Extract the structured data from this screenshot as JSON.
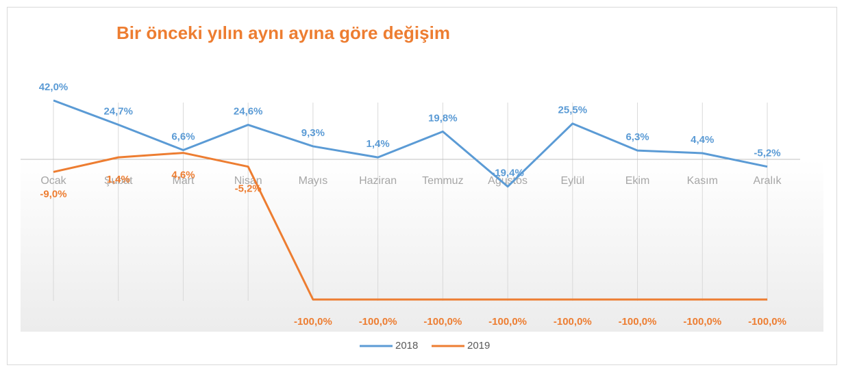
{
  "chart_data": {
    "type": "line",
    "title": "Bir önceki yılın aynı ayına göre değişim",
    "categories": [
      "Ocak",
      "Şubat",
      "Mart",
      "Nisan",
      "Mayıs",
      "Haziran",
      "Temmuz",
      "Ağustos",
      "Eylül",
      "Ekim",
      "Kasım",
      "Aralık"
    ],
    "series": [
      {
        "name": "2018",
        "color": "#5b9bd5",
        "values": [
          42.0,
          24.7,
          6.6,
          24.6,
          9.3,
          1.4,
          19.8,
          -19.4,
          25.5,
          6.3,
          4.4,
          -5.2
        ],
        "value_labels": [
          "42,0%",
          "24,7%",
          "6,6%",
          "24,6%",
          "9,3%",
          "1,4%",
          "19,8%",
          "-19,4%",
          "25,5%",
          "6,3%",
          "4,4%",
          "-5,2%"
        ]
      },
      {
        "name": "2019",
        "color": "#ed7d31",
        "values": [
          -9.0,
          1.4,
          4.6,
          -5.2,
          -100.0,
          -100.0,
          -100.0,
          -100.0,
          -100.0,
          -100.0,
          -100.0,
          -100.0
        ],
        "value_labels": [
          "-9,0%",
          "1,4%",
          "4,6%",
          "-5,2%",
          "-100,0%",
          "-100,0%",
          "-100,0%",
          "-100,0%",
          "-100,0%",
          "-100,0%",
          "-100,0%",
          "-100,0%"
        ]
      }
    ],
    "ylim": [
      -120,
      60
    ],
    "grid": true,
    "legend": "bottom"
  }
}
